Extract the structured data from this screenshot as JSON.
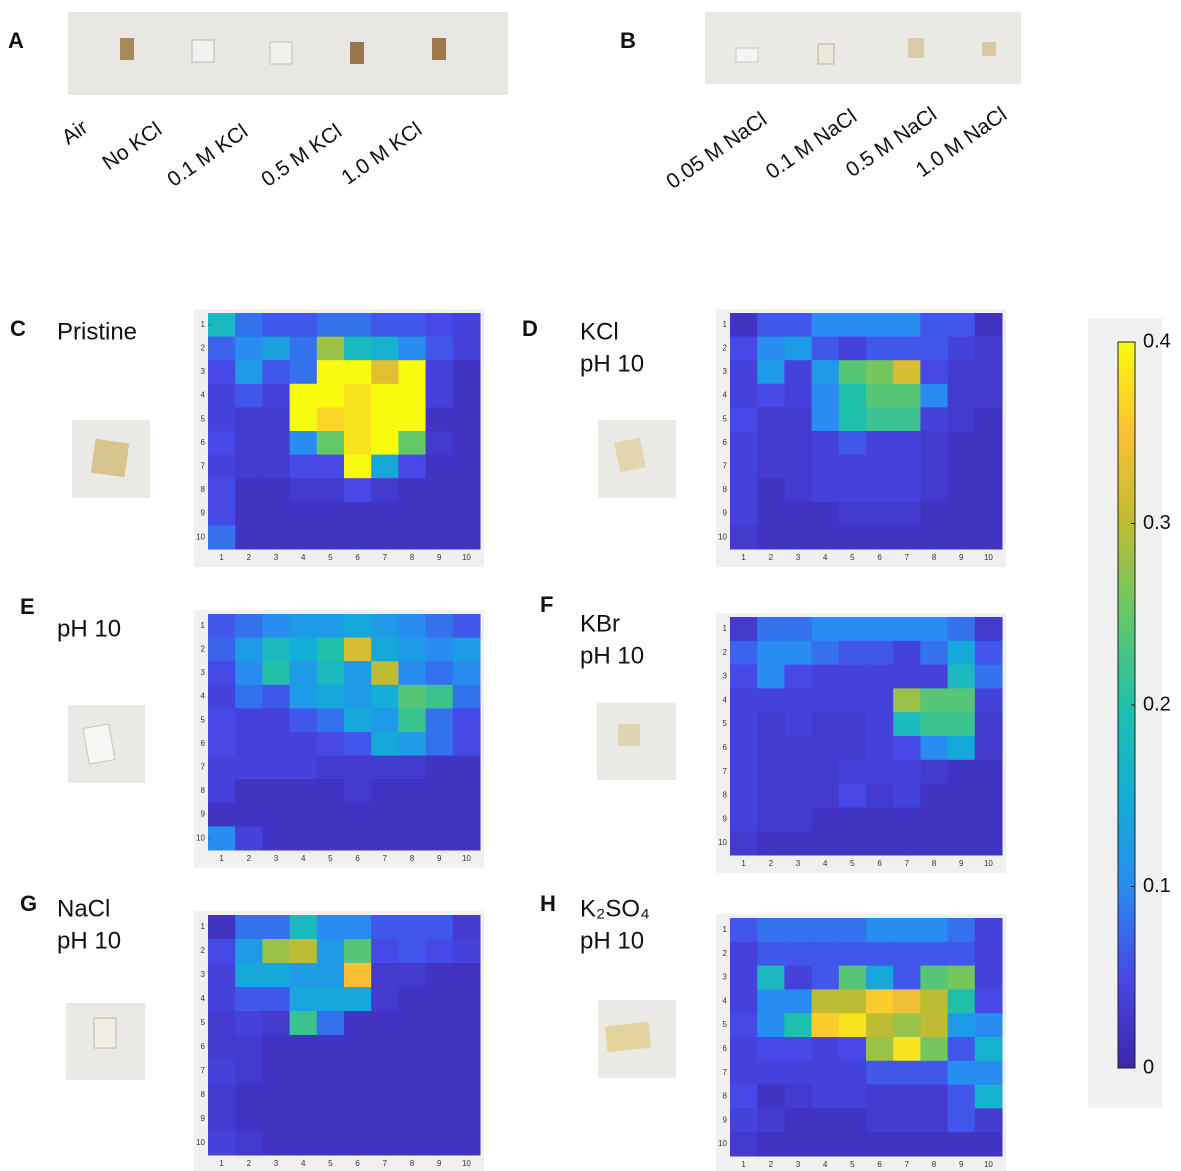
{
  "panel_a": {
    "label": "A",
    "samples": [
      "Air",
      "No KCl",
      "0.1 M KCl",
      "0.5 M KCl",
      "1.0 M KCl"
    ]
  },
  "panel_b": {
    "label": "B",
    "samples": [
      "0.05 M NaCl",
      "0.1 M NaCl",
      "0.5 M NaCl",
      "1.0 M NaCl"
    ]
  },
  "colorbar": {
    "colormap": "parula",
    "lim": [
      0,
      0.4
    ],
    "ticks": [
      0,
      0.1,
      0.2,
      0.3,
      0.4
    ]
  },
  "chart_data": [
    {
      "type": "heatmap",
      "label": "C",
      "title": [
        "Pristine"
      ],
      "xlim": [
        0.5,
        10.5
      ],
      "ylim": [
        0.5,
        10.5
      ],
      "xticks": [
        1,
        2,
        3,
        4,
        5,
        6,
        7,
        8,
        9,
        10
      ],
      "yticks": [
        1,
        2,
        3,
        4,
        5,
        6,
        7,
        8,
        9,
        10
      ],
      "values": [
        [
          0.18,
          0.08,
          0.06,
          0.06,
          0.08,
          0.08,
          0.06,
          0.06,
          0.05,
          0.04
        ],
        [
          0.07,
          0.1,
          0.13,
          0.08,
          0.28,
          0.18,
          0.16,
          0.1,
          0.06,
          0.04
        ],
        [
          0.05,
          0.12,
          0.06,
          0.08,
          0.4,
          0.4,
          0.33,
          0.4,
          0.04,
          0.02
        ],
        [
          0.04,
          0.06,
          0.04,
          0.4,
          0.4,
          0.38,
          0.4,
          0.4,
          0.04,
          0.02
        ],
        [
          0.04,
          0.03,
          0.03,
          0.4,
          0.37,
          0.38,
          0.4,
          0.4,
          0.02,
          0.02
        ],
        [
          0.05,
          0.03,
          0.03,
          0.1,
          0.25,
          0.38,
          0.4,
          0.25,
          0.03,
          0.02
        ],
        [
          0.04,
          0.03,
          0.03,
          0.05,
          0.05,
          0.4,
          0.14,
          0.05,
          0.02,
          0.02
        ],
        [
          0.05,
          0.02,
          0.02,
          0.03,
          0.03,
          0.05,
          0.03,
          0.02,
          0.02,
          0.02
        ],
        [
          0.05,
          0.02,
          0.02,
          0.02,
          0.02,
          0.02,
          0.02,
          0.02,
          0.02,
          0.02
        ],
        [
          0.08,
          0.02,
          0.02,
          0.02,
          0.02,
          0.02,
          0.02,
          0.02,
          0.02,
          0.02
        ]
      ]
    },
    {
      "type": "heatmap",
      "label": "D",
      "title": [
        "KCl",
        "pH 10"
      ],
      "xlim": [
        0.5,
        10.5
      ],
      "ylim": [
        0.5,
        10.5
      ],
      "xticks": [
        1,
        2,
        3,
        4,
        5,
        6,
        7,
        8,
        9,
        10
      ],
      "yticks": [
        1,
        2,
        3,
        4,
        5,
        6,
        7,
        8,
        9,
        10
      ],
      "values": [
        [
          0.02,
          0.06,
          0.06,
          0.1,
          0.1,
          0.1,
          0.1,
          0.06,
          0.06,
          0.02
        ],
        [
          0.05,
          0.1,
          0.12,
          0.06,
          0.04,
          0.06,
          0.06,
          0.06,
          0.04,
          0.03
        ],
        [
          0.04,
          0.12,
          0.04,
          0.12,
          0.24,
          0.26,
          0.32,
          0.05,
          0.03,
          0.03
        ],
        [
          0.04,
          0.05,
          0.04,
          0.1,
          0.2,
          0.24,
          0.24,
          0.1,
          0.03,
          0.03
        ],
        [
          0.05,
          0.03,
          0.03,
          0.1,
          0.2,
          0.22,
          0.22,
          0.04,
          0.03,
          0.02
        ],
        [
          0.04,
          0.03,
          0.03,
          0.04,
          0.06,
          0.04,
          0.04,
          0.03,
          0.02,
          0.02
        ],
        [
          0.04,
          0.03,
          0.03,
          0.04,
          0.04,
          0.04,
          0.04,
          0.03,
          0.02,
          0.02
        ],
        [
          0.04,
          0.02,
          0.03,
          0.04,
          0.04,
          0.04,
          0.04,
          0.03,
          0.02,
          0.02
        ],
        [
          0.04,
          0.02,
          0.02,
          0.02,
          0.03,
          0.03,
          0.03,
          0.02,
          0.02,
          0.02
        ],
        [
          0.03,
          0.02,
          0.02,
          0.02,
          0.02,
          0.02,
          0.02,
          0.02,
          0.02,
          0.02
        ]
      ]
    },
    {
      "type": "heatmap",
      "label": "E",
      "title": [
        "pH 10"
      ],
      "xlim": [
        0.5,
        10.5
      ],
      "ylim": [
        0.5,
        10.5
      ],
      "xticks": [
        1,
        2,
        3,
        4,
        5,
        6,
        7,
        8,
        9,
        10
      ],
      "yticks": [
        1,
        2,
        3,
        4,
        5,
        6,
        7,
        8,
        9,
        10
      ],
      "values": [
        [
          0.06,
          0.08,
          0.1,
          0.12,
          0.12,
          0.14,
          0.12,
          0.1,
          0.08,
          0.06
        ],
        [
          0.07,
          0.12,
          0.18,
          0.15,
          0.2,
          0.32,
          0.14,
          0.12,
          0.1,
          0.12
        ],
        [
          0.05,
          0.1,
          0.2,
          0.12,
          0.18,
          0.12,
          0.3,
          0.1,
          0.08,
          0.1
        ],
        [
          0.04,
          0.08,
          0.06,
          0.12,
          0.14,
          0.12,
          0.15,
          0.24,
          0.22,
          0.08
        ],
        [
          0.05,
          0.04,
          0.04,
          0.06,
          0.08,
          0.14,
          0.12,
          0.22,
          0.08,
          0.05
        ],
        [
          0.05,
          0.04,
          0.04,
          0.04,
          0.05,
          0.06,
          0.14,
          0.12,
          0.08,
          0.05
        ],
        [
          0.04,
          0.04,
          0.04,
          0.04,
          0.03,
          0.03,
          0.03,
          0.03,
          0.02,
          0.02
        ],
        [
          0.04,
          0.02,
          0.02,
          0.02,
          0.02,
          0.03,
          0.02,
          0.02,
          0.02,
          0.02
        ],
        [
          0.02,
          0.02,
          0.02,
          0.02,
          0.02,
          0.02,
          0.02,
          0.02,
          0.02,
          0.02
        ],
        [
          0.1,
          0.04,
          0.02,
          0.02,
          0.02,
          0.02,
          0.02,
          0.02,
          0.02,
          0.02
        ]
      ]
    },
    {
      "type": "heatmap",
      "label": "F",
      "title": [
        "KBr",
        "pH 10"
      ],
      "xlim": [
        0.5,
        10.5
      ],
      "ylim": [
        0.5,
        10.5
      ],
      "xticks": [
        1,
        2,
        3,
        4,
        5,
        6,
        7,
        8,
        9,
        10
      ],
      "yticks": [
        1,
        2,
        3,
        4,
        5,
        6,
        7,
        8,
        9,
        10
      ],
      "values": [
        [
          0.03,
          0.08,
          0.08,
          0.1,
          0.1,
          0.1,
          0.1,
          0.1,
          0.08,
          0.03
        ],
        [
          0.07,
          0.1,
          0.1,
          0.08,
          0.06,
          0.06,
          0.04,
          0.08,
          0.14,
          0.06
        ],
        [
          0.05,
          0.1,
          0.05,
          0.04,
          0.04,
          0.04,
          0.04,
          0.04,
          0.18,
          0.08
        ],
        [
          0.04,
          0.04,
          0.04,
          0.04,
          0.04,
          0.04,
          0.28,
          0.24,
          0.24,
          0.04
        ],
        [
          0.04,
          0.03,
          0.04,
          0.03,
          0.03,
          0.04,
          0.18,
          0.22,
          0.22,
          0.03
        ],
        [
          0.04,
          0.03,
          0.03,
          0.03,
          0.03,
          0.04,
          0.05,
          0.1,
          0.14,
          0.03
        ],
        [
          0.04,
          0.03,
          0.03,
          0.03,
          0.04,
          0.04,
          0.04,
          0.03,
          0.02,
          0.02
        ],
        [
          0.04,
          0.03,
          0.03,
          0.03,
          0.05,
          0.03,
          0.04,
          0.02,
          0.02,
          0.02
        ],
        [
          0.04,
          0.03,
          0.03,
          0.02,
          0.02,
          0.02,
          0.02,
          0.02,
          0.02,
          0.02
        ],
        [
          0.03,
          0.02,
          0.02,
          0.02,
          0.02,
          0.02,
          0.02,
          0.02,
          0.02,
          0.02
        ]
      ]
    },
    {
      "type": "heatmap",
      "label": "G",
      "title": [
        "NaCl",
        "pH 10"
      ],
      "xlim": [
        0.5,
        10.5
      ],
      "ylim": [
        0.5,
        10.5
      ],
      "xticks": [
        1,
        2,
        3,
        4,
        5,
        6,
        7,
        8,
        9,
        10
      ],
      "yticks": [
        1,
        2,
        3,
        4,
        5,
        6,
        7,
        8,
        9,
        10
      ],
      "values": [
        [
          0.02,
          0.08,
          0.08,
          0.18,
          0.1,
          0.1,
          0.06,
          0.06,
          0.06,
          0.03
        ],
        [
          0.05,
          0.12,
          0.28,
          0.3,
          0.12,
          0.24,
          0.05,
          0.06,
          0.05,
          0.04
        ],
        [
          0.04,
          0.14,
          0.14,
          0.12,
          0.12,
          0.35,
          0.03,
          0.03,
          0.02,
          0.02
        ],
        [
          0.04,
          0.06,
          0.06,
          0.14,
          0.14,
          0.14,
          0.03,
          0.02,
          0.02,
          0.02
        ],
        [
          0.03,
          0.04,
          0.03,
          0.22,
          0.08,
          0.02,
          0.02,
          0.02,
          0.02,
          0.02
        ],
        [
          0.03,
          0.03,
          0.02,
          0.02,
          0.02,
          0.02,
          0.02,
          0.02,
          0.02,
          0.02
        ],
        [
          0.04,
          0.03,
          0.02,
          0.02,
          0.02,
          0.02,
          0.02,
          0.02,
          0.02,
          0.02
        ],
        [
          0.03,
          0.02,
          0.02,
          0.02,
          0.02,
          0.02,
          0.02,
          0.02,
          0.02,
          0.02
        ],
        [
          0.03,
          0.02,
          0.02,
          0.02,
          0.02,
          0.02,
          0.02,
          0.02,
          0.02,
          0.02
        ],
        [
          0.04,
          0.03,
          0.02,
          0.02,
          0.02,
          0.02,
          0.02,
          0.02,
          0.02,
          0.02
        ]
      ]
    },
    {
      "type": "heatmap",
      "label": "H",
      "title": [
        "K₂SO₄",
        "pH 10"
      ],
      "xlim": [
        0.5,
        10.5
      ],
      "ylim": [
        0.5,
        10.5
      ],
      "xticks": [
        1,
        2,
        3,
        4,
        5,
        6,
        7,
        8,
        9,
        10
      ],
      "yticks": [
        1,
        2,
        3,
        4,
        5,
        6,
        7,
        8,
        9,
        10
      ],
      "values": [
        [
          0.06,
          0.08,
          0.08,
          0.08,
          0.08,
          0.1,
          0.1,
          0.1,
          0.08,
          0.04
        ],
        [
          0.04,
          0.06,
          0.06,
          0.06,
          0.06,
          0.06,
          0.06,
          0.06,
          0.06,
          0.04
        ],
        [
          0.04,
          0.18,
          0.04,
          0.06,
          0.24,
          0.14,
          0.06,
          0.24,
          0.26,
          0.04
        ],
        [
          0.04,
          0.1,
          0.1,
          0.3,
          0.3,
          0.36,
          0.34,
          0.3,
          0.2,
          0.05
        ],
        [
          0.05,
          0.1,
          0.2,
          0.36,
          0.38,
          0.3,
          0.28,
          0.3,
          0.12,
          0.1
        ],
        [
          0.04,
          0.05,
          0.05,
          0.04,
          0.05,
          0.28,
          0.38,
          0.26,
          0.06,
          0.16
        ],
        [
          0.04,
          0.04,
          0.04,
          0.04,
          0.04,
          0.06,
          0.06,
          0.06,
          0.1,
          0.1
        ],
        [
          0.05,
          0.02,
          0.03,
          0.04,
          0.04,
          0.03,
          0.03,
          0.03,
          0.06,
          0.16
        ],
        [
          0.04,
          0.03,
          0.02,
          0.02,
          0.02,
          0.03,
          0.03,
          0.03,
          0.06,
          0.03
        ],
        [
          0.03,
          0.02,
          0.02,
          0.02,
          0.02,
          0.02,
          0.02,
          0.02,
          0.02,
          0.02
        ]
      ]
    }
  ]
}
